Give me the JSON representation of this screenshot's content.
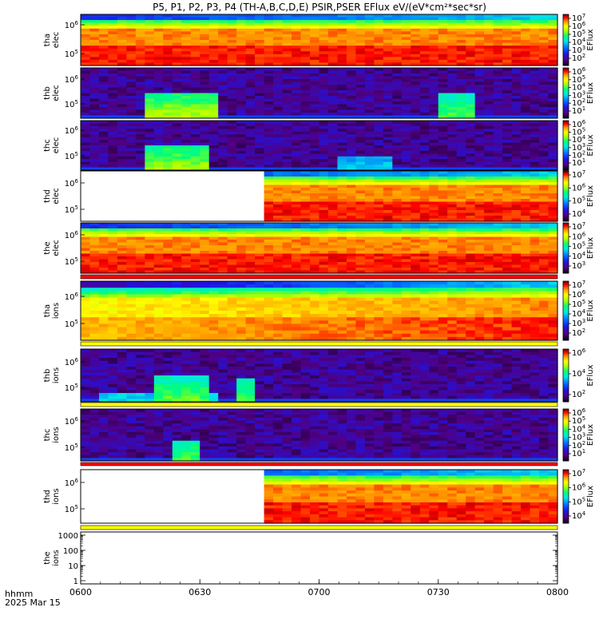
{
  "title": "P5, P1, P2, P3, P4 (TH-A,B,C,D,E) PSIR,PSER EFlux eV/(eV*cm²*sec*sr)",
  "time_axis": {
    "label_top": "hhmm",
    "label_bottom": "2025 Mar 15",
    "ticks": [
      "0600",
      "0630",
      "0700",
      "0730",
      "0800"
    ]
  },
  "chart_data": [
    {
      "type": "heatmap",
      "name": "tha elec",
      "ylabel": [
        "tha",
        "elec"
      ],
      "yticks": [
        {
          "base": "10",
          "exp": "6"
        },
        {
          "base": "10",
          "exp": "5"
        }
      ],
      "colorbar": {
        "label": "EFlux",
        "ticks": [
          {
            "base": "10",
            "exp": "7"
          },
          {
            "base": "10",
            "exp": "6"
          },
          {
            "base": "10",
            "exp": "5"
          },
          {
            "base": "10",
            "exp": "4"
          },
          {
            "base": "10",
            "exp": "3"
          },
          {
            "base": "10",
            "exp": "2"
          }
        ]
      }
    },
    {
      "type": "heatmap",
      "name": "thb elec",
      "ylabel": [
        "thb",
        "elec"
      ],
      "yticks": [
        {
          "base": "10",
          "exp": "6"
        },
        {
          "base": "10",
          "exp": "5"
        }
      ],
      "colorbar": {
        "label": "EFlux",
        "ticks": [
          {
            "base": "10",
            "exp": "6"
          },
          {
            "base": "10",
            "exp": "5"
          },
          {
            "base": "10",
            "exp": "4"
          },
          {
            "base": "10",
            "exp": "3"
          },
          {
            "base": "10",
            "exp": "2"
          },
          {
            "base": "10",
            "exp": "1"
          }
        ]
      }
    },
    {
      "type": "heatmap",
      "name": "thc elec",
      "ylabel": [
        "thc",
        "elec"
      ],
      "yticks": [
        {
          "base": "10",
          "exp": "6"
        },
        {
          "base": "10",
          "exp": "5"
        }
      ],
      "colorbar": {
        "label": "EFlux",
        "ticks": [
          {
            "base": "10",
            "exp": "6"
          },
          {
            "base": "10",
            "exp": "5"
          },
          {
            "base": "10",
            "exp": "4"
          },
          {
            "base": "10",
            "exp": "3"
          },
          {
            "base": "10",
            "exp": "2"
          },
          {
            "base": "10",
            "exp": "1"
          }
        ]
      }
    },
    {
      "type": "heatmap",
      "name": "thd elec",
      "ylabel": [
        "thd",
        "elec"
      ],
      "yticks": [
        {
          "base": "10",
          "exp": "6"
        },
        {
          "base": "10",
          "exp": "5"
        }
      ],
      "colorbar": {
        "label": "EFlux",
        "ticks": [
          {
            "base": "10",
            "exp": "7"
          },
          {
            "base": "10",
            "exp": "6"
          },
          {
            "base": "10",
            "exp": "5"
          },
          {
            "base": "10",
            "exp": "4"
          }
        ]
      }
    },
    {
      "type": "heatmap",
      "name": "the elec",
      "ylabel": [
        "the",
        "elec"
      ],
      "yticks": [
        {
          "base": "10",
          "exp": "6"
        },
        {
          "base": "10",
          "exp": "5"
        }
      ],
      "colorbar": {
        "label": "EFlux",
        "ticks": [
          {
            "base": "10",
            "exp": "7"
          },
          {
            "base": "10",
            "exp": "6"
          },
          {
            "base": "10",
            "exp": "5"
          },
          {
            "base": "10",
            "exp": "4"
          },
          {
            "base": "10",
            "exp": "3"
          }
        ]
      }
    },
    {
      "type": "heatmap",
      "name": "tha ions",
      "ylabel": [
        "tha",
        "ions"
      ],
      "yticks": [
        {
          "base": "10",
          "exp": "6"
        },
        {
          "base": "10",
          "exp": "5"
        }
      ],
      "colorbar": {
        "label": "EFlux",
        "ticks": [
          {
            "base": "10",
            "exp": "7"
          },
          {
            "base": "10",
            "exp": "6"
          },
          {
            "base": "10",
            "exp": "5"
          },
          {
            "base": "10",
            "exp": "4"
          },
          {
            "base": "10",
            "exp": "3"
          },
          {
            "base": "10",
            "exp": "2"
          }
        ]
      }
    },
    {
      "type": "heatmap",
      "name": "thb ions",
      "ylabel": [
        "thb",
        "ions"
      ],
      "yticks": [
        {
          "base": "10",
          "exp": "6"
        },
        {
          "base": "10",
          "exp": "5"
        }
      ],
      "colorbar": {
        "label": "EFlux",
        "ticks": [
          {
            "base": "10",
            "exp": "6"
          },
          {
            "base": "10",
            "exp": "4"
          },
          {
            "base": "10",
            "exp": "2"
          }
        ]
      }
    },
    {
      "type": "heatmap",
      "name": "thc ions",
      "ylabel": [
        "thc",
        "ions"
      ],
      "yticks": [
        {
          "base": "10",
          "exp": "6"
        },
        {
          "base": "10",
          "exp": "5"
        }
      ],
      "colorbar": {
        "label": "EFlux",
        "ticks": [
          {
            "base": "10",
            "exp": "6"
          },
          {
            "base": "10",
            "exp": "5"
          },
          {
            "base": "10",
            "exp": "4"
          },
          {
            "base": "10",
            "exp": "3"
          },
          {
            "base": "10",
            "exp": "2"
          },
          {
            "base": "10",
            "exp": "1"
          }
        ]
      }
    },
    {
      "type": "heatmap",
      "name": "thd ions",
      "ylabel": [
        "thd",
        "ions"
      ],
      "yticks": [
        {
          "base": "10",
          "exp": "6"
        },
        {
          "base": "10",
          "exp": "5"
        }
      ],
      "colorbar": {
        "label": "EFlux",
        "ticks": [
          {
            "base": "10",
            "exp": "7"
          },
          {
            "base": "10",
            "exp": "6"
          },
          {
            "base": "10",
            "exp": "5"
          },
          {
            "base": "10",
            "exp": "4"
          }
        ]
      }
    },
    {
      "type": "line",
      "name": "the ions",
      "ylabel": [
        "the",
        "ions"
      ],
      "yscale": "log",
      "ylim": [
        1,
        1000
      ],
      "yticks": [
        {
          "text": "1000"
        },
        {
          "text": "100"
        },
        {
          "text": "10"
        },
        {
          "text": "1"
        }
      ]
    }
  ]
}
